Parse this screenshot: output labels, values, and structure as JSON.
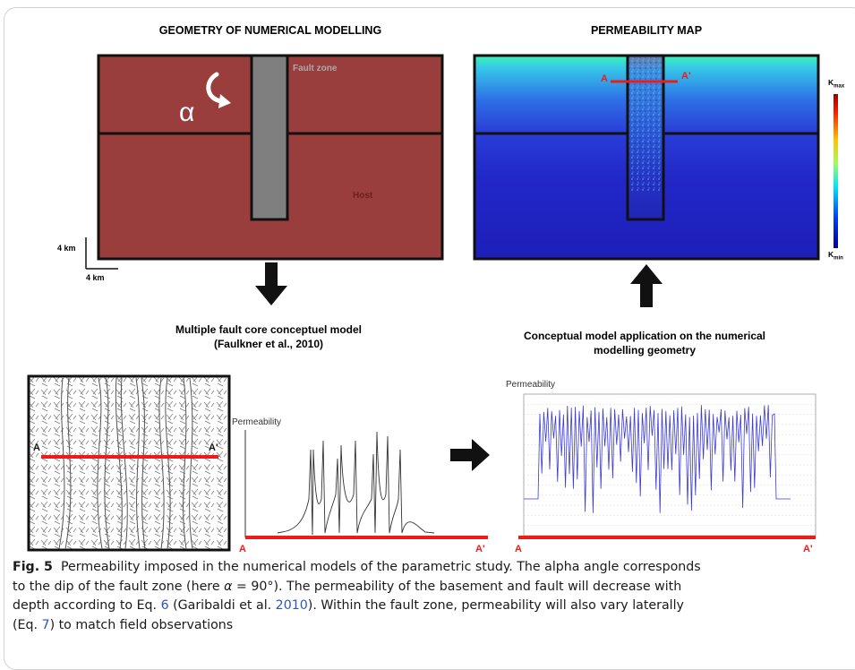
{
  "panels": {
    "geometry": {
      "title": "GEOMETRY OF NUMERICAL MODELLING",
      "fault_zone_label": "Fault zone",
      "host_label": "Host",
      "alpha_symbol": "α",
      "scale_v": "4 km",
      "scale_h": "4 km",
      "colors": {
        "host": "#993e3c",
        "fault": "#7f7f7f"
      }
    },
    "permeability_map": {
      "title": "PERMEABILITY MAP",
      "section_start": "A",
      "section_end": "A'",
      "kmax_label": "K",
      "kmax_sub": "max",
      "kmin_label": "K",
      "kmin_sub": "min"
    },
    "conceptual": {
      "title_line1": "Multiple fault core conceptuel model",
      "title_line2": "(Faulkner et al., 2010)",
      "section_start": "A",
      "section_end": "A'",
      "plot_ylabel": "Permeability",
      "plot_start": "A",
      "plot_end": "A'"
    },
    "application": {
      "title_line1": "Conceptual model application on the numerical",
      "title_line2": "modelling geometry",
      "plot_ylabel": "Permeability",
      "plot_start": "A",
      "plot_end": "A'"
    }
  },
  "caption": {
    "label": "Fig. 5",
    "line1": "Permeability imposed in the numerical models of the parametric study. The alpha angle corresponds",
    "line2_pre": "to the dip of the fault zone (here ",
    "line2_alpha": "α",
    "line2_post": " = 90°). The permeability of the basement and fault will decrease with",
    "line3_pre": "depth according to Eq. ",
    "line3_eq": "6",
    "line3_mid": " (Garibaldi et al. ",
    "line3_year": "2010",
    "line3_post": "). Within the fault zone, permeability will also vary laterally",
    "line4_pre": "(Eq. ",
    "line4_eq": "7",
    "line4_post": ") to match field observations"
  }
}
